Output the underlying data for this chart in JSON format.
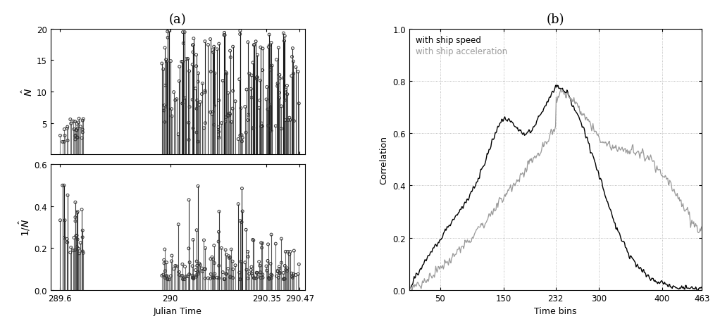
{
  "title_a": "(a)",
  "title_b": "(b)",
  "subplot_a_top": {
    "ylabel": "$\\hat{N}$",
    "ylim": [
      0,
      20
    ],
    "yticks": [
      5,
      10,
      15,
      20
    ],
    "xlim": [
      289.565,
      290.49
    ],
    "xticks": [
      289.6,
      290.0,
      290.35,
      290.47
    ],
    "xticklabels": [
      "289.6",
      "290",
      "290.35",
      "290.47"
    ]
  },
  "subplot_a_bottom": {
    "ylabel": "$1/\\hat{N}$",
    "ylim": [
      0,
      0.6
    ],
    "yticks": [
      0,
      0.2,
      0.4,
      0.6
    ],
    "xlim": [
      289.565,
      290.49
    ],
    "xticks": [
      289.6,
      290.0,
      290.35,
      290.47
    ],
    "xticklabels": [
      "289.6",
      "290",
      "290.35",
      "290.47"
    ],
    "xlabel": "Julian Time"
  },
  "subplot_b": {
    "ylabel": "Correlation",
    "xlabel": "Time bins",
    "ylim": [
      0,
      1.0
    ],
    "yticks": [
      0,
      0.2,
      0.4,
      0.6,
      0.8,
      1.0
    ],
    "xlim": [
      1,
      463
    ],
    "xticks": [
      50,
      150,
      232,
      300,
      400,
      463
    ],
    "xticklabels": [
      "50",
      "150",
      "232",
      "300",
      "400",
      "463"
    ],
    "legend_speed": "with ship speed",
    "legend_accel": "with ship acceleration",
    "color_speed": "#000000",
    "color_accel": "#999999"
  },
  "background_color": "#ffffff"
}
